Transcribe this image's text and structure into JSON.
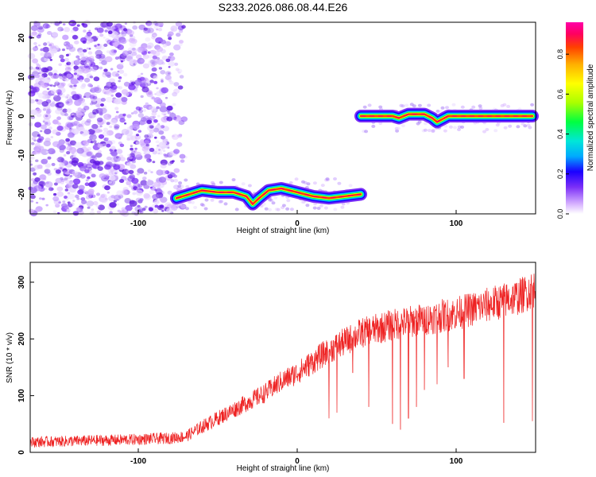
{
  "page": {
    "title": "S233.2026.086.08.44.E26"
  },
  "chart_data": [
    {
      "type": "heatmap",
      "title": "S233.2026.086.08.44.E26",
      "xlabel": "Height of straight line (km)",
      "ylabel": "Frequency (Hz)",
      "xlim": [
        -168,
        150
      ],
      "ylim": [
        -25,
        24
      ],
      "x_ticks": [
        -100,
        0,
        100
      ],
      "y_ticks": [
        -20,
        -10,
        0,
        10,
        20
      ],
      "colorbar": {
        "label": "Normalized spectral amplitude",
        "range": [
          0,
          0.96
        ],
        "ticks": [
          0.0,
          0.2,
          0.4,
          0.6,
          0.8
        ],
        "colors": [
          "#ffffff",
          "#d8b4ff",
          "#7b2ff7",
          "#1a00ff",
          "#00aaff",
          "#00e6d8",
          "#00ff40",
          "#aaff00",
          "#ffff00",
          "#ffb000",
          "#ff4000",
          "#ff0060",
          "#ff00a8"
        ]
      },
      "ridge": {
        "x": [
          -76,
          -68,
          -60,
          -50,
          -40,
          -32,
          -28,
          -24,
          -18,
          -10,
          0,
          10,
          20,
          30,
          40,
          40,
          50,
          60,
          64,
          70,
          80,
          85,
          88,
          95,
          110,
          130,
          148
        ],
        "y": [
          -21,
          -20,
          -19,
          -19.5,
          -19.5,
          -20.5,
          -22.5,
          -21,
          -19,
          -18.5,
          -19.5,
          -20.5,
          -21,
          -20.5,
          -20,
          0,
          0,
          0,
          -0.5,
          0.5,
          0.5,
          -0.5,
          -1.5,
          0,
          0,
          0,
          0
        ]
      },
      "noise_region_x": [
        -168,
        -70
      ]
    },
    {
      "type": "line",
      "xlabel": "Height of straight line (km)",
      "ylabel": "SNR (10 * v/v)",
      "xlim": [
        -168,
        150
      ],
      "ylim": [
        0,
        335
      ],
      "x_ticks": [
        -100,
        0,
        100
      ],
      "y_ticks": [
        0,
        100,
        200,
        300
      ],
      "color": "#ee2222",
      "trend": {
        "x": [
          -168,
          -140,
          -110,
          -80,
          -70,
          -60,
          -50,
          -40,
          -30,
          -20,
          -10,
          0,
          10,
          20,
          30,
          40,
          60,
          80,
          100,
          120,
          140,
          150
        ],
        "y": [
          18,
          20,
          22,
          25,
          28,
          45,
          60,
          75,
          90,
          105,
          125,
          140,
          160,
          180,
          195,
          210,
          225,
          235,
          245,
          260,
          275,
          290
        ]
      },
      "dropouts": [
        {
          "x": 20,
          "y": 60
        },
        {
          "x": 25,
          "y": 70
        },
        {
          "x": 35,
          "y": 140
        },
        {
          "x": 45,
          "y": 80
        },
        {
          "x": 60,
          "y": 50
        },
        {
          "x": 65,
          "y": 40
        },
        {
          "x": 70,
          "y": 60
        },
        {
          "x": 75,
          "y": 80
        },
        {
          "x": 80,
          "y": 110
        },
        {
          "x": 88,
          "y": 120
        },
        {
          "x": 95,
          "y": 150
        },
        {
          "x": 105,
          "y": 130
        },
        {
          "x": 130,
          "y": 52
        },
        {
          "x": 148,
          "y": 55
        }
      ]
    }
  ]
}
